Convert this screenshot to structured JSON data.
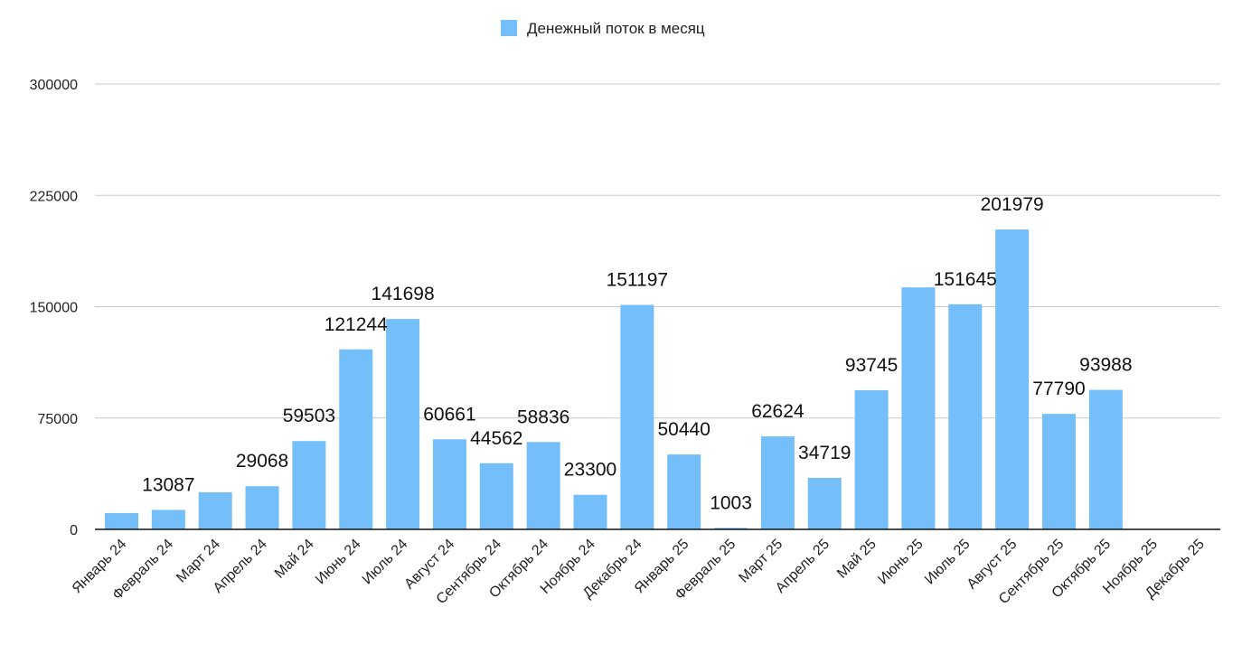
{
  "chart_data": {
    "type": "bar",
    "legend": {
      "position": "top-center",
      "entries": [
        {
          "label": "Денежный поток в месяц",
          "color": "#74BFF9"
        }
      ]
    },
    "categories": [
      "Январь 24",
      "Февраль 24",
      "Март 24",
      "Апрель 24",
      "Май 24",
      "Июнь 24",
      "Июль 24",
      "Август 24",
      "Сентябрь 24",
      "Октябрь 24",
      "Ноябрь 24",
      "Декабрь 24",
      "Январь 25",
      "Февраль 25",
      "Март 25",
      "Апрель 25",
      "Май 25",
      "Июнь 25",
      "Июль 25",
      "Август 25",
      "Сентябрь 25",
      "Октябрь 25",
      "Ноябрь 25",
      "Декабрь 25"
    ],
    "series": [
      {
        "name": "Денежный поток в месяц",
        "color": "#74BFF9",
        "values": [
          11000,
          13087,
          25000,
          29068,
          59503,
          121244,
          141698,
          60661,
          44562,
          58836,
          23300,
          151197,
          50440,
          1003,
          62624,
          34719,
          93745,
          163000,
          151645,
          201979,
          77790,
          93988,
          null,
          null
        ],
        "data_labels": [
          "",
          "13087",
          "",
          "29068",
          "59503",
          "121244",
          "141698",
          "60661",
          "44562",
          "58836",
          "23300",
          "151197",
          "50440",
          "1003",
          "62624",
          "34719",
          "93745",
          "",
          "151645",
          "201979",
          "77790",
          "93988",
          "",
          ""
        ]
      }
    ],
    "yaxis": {
      "ticks": [
        "0",
        "75000",
        "150000",
        "225000",
        "300000"
      ],
      "tick_values": [
        0,
        75000,
        150000,
        225000,
        300000
      ]
    },
    "ylim": [
      0,
      300000
    ],
    "grid": true,
    "title": "",
    "xlabel": "",
    "ylabel": ""
  }
}
